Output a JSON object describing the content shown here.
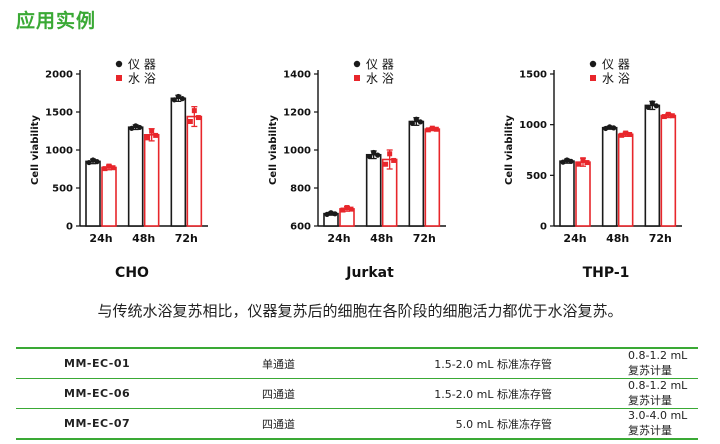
{
  "section_title": "应用实例",
  "caption": "与传统水浴复苏相比，仪器复苏后的细胞在各阶段的细胞活力都优于水浴复苏。",
  "colors": {
    "accent": "#3aa935",
    "instrument": "#1a1a1a",
    "water_bath": "#e8262b"
  },
  "chart_data": [
    {
      "type": "bar",
      "title": "CHO",
      "ylabel": "Cell viability",
      "categories": [
        "24h",
        "48h",
        "72h"
      ],
      "ylim": [
        0,
        2000
      ],
      "yticks": [
        "0",
        "500",
        "1000",
        "1500",
        "2000"
      ],
      "series": [
        {
          "name": "仪 器",
          "color": "#1a1a1a",
          "values": [
            850,
            1300,
            1680
          ],
          "errors": [
            30,
            30,
            40
          ]
        },
        {
          "name": "水 浴",
          "color": "#e8262b",
          "values": [
            770,
            1200,
            1440
          ],
          "errors": [
            30,
            80,
            130
          ]
        }
      ]
    },
    {
      "type": "bar",
      "title": "Jurkat",
      "ylabel": "Cell viability",
      "categories": [
        "24h",
        "48h",
        "72h"
      ],
      "ylim": [
        600,
        1400
      ],
      "yticks": [
        "600",
        "800",
        "1000",
        "1200",
        "1400"
      ],
      "series": [
        {
          "name": "仪 器",
          "color": "#1a1a1a",
          "values": [
            665,
            975,
            1150
          ],
          "errors": [
            8,
            20,
            20
          ]
        },
        {
          "name": "水 浴",
          "color": "#e8262b",
          "values": [
            690,
            950,
            1110
          ],
          "errors": [
            12,
            50,
            8
          ]
        }
      ]
    },
    {
      "type": "bar",
      "title": "THP-1",
      "ylabel": "Cell viability",
      "categories": [
        "24h",
        "48h",
        "72h"
      ],
      "ylim": [
        0,
        1500
      ],
      "yticks": [
        "0",
        "500",
        "1000",
        "1500"
      ],
      "series": [
        {
          "name": "仪 器",
          "color": "#1a1a1a",
          "values": [
            640,
            970,
            1190
          ],
          "errors": [
            20,
            15,
            40
          ]
        },
        {
          "name": "水 浴",
          "color": "#e8262b",
          "values": [
            630,
            905,
            1090
          ],
          "errors": [
            40,
            20,
            20
          ]
        }
      ]
    }
  ],
  "spec_table": [
    [
      "MM-EC-01",
      "单通道",
      "1.5-2.0 mL 标准冻存管",
      "0.8-1.2 mL 复苏计量"
    ],
    [
      "MM-EC-06",
      "四通道",
      "1.5-2.0 mL 标准冻存管",
      "0.8-1.2 mL 复苏计量"
    ],
    [
      "MM-EC-07",
      "四通道",
      "5.0 mL 标准冻存管",
      "3.0-4.0 mL 复苏计量"
    ]
  ]
}
